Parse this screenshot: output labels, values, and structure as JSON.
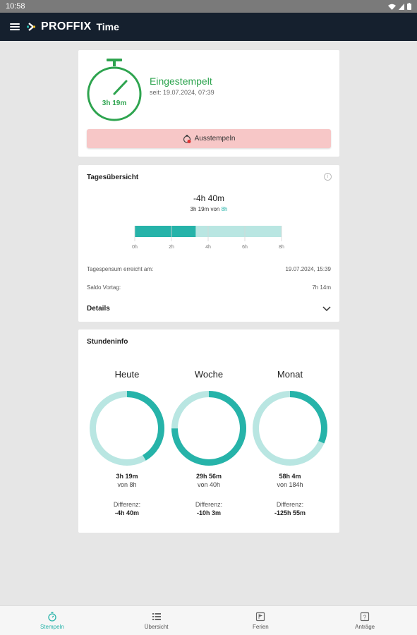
{
  "status": {
    "time": "10:58"
  },
  "app": {
    "brand": "PROFFIX",
    "product": "Time"
  },
  "stamp": {
    "elapsed": "3h 19m",
    "title": "Eingestempelt",
    "since": "seit: 19.07.2024, 07:39",
    "button_label": "Ausstempeln"
  },
  "overview": {
    "title": "Tagesübersicht",
    "difference": "-4h 40m",
    "worked": "3h 19m",
    "of_word": "von",
    "target": "8h",
    "progress_fraction": 0.415,
    "ticks": [
      "0h",
      "2h",
      "4h",
      "6h",
      "8h"
    ],
    "rows": [
      {
        "label": "Tagespensum erreicht am:",
        "value": "19.07.2024, 15:39"
      },
      {
        "label": "Saldo Vortag:",
        "value": "7h 14m"
      }
    ],
    "details_label": "Details"
  },
  "hours": {
    "title": "Stundeninfo",
    "diff_label": "Differenz:",
    "items": [
      {
        "title": "Heute",
        "value": "3h 19m",
        "of": "von 8h",
        "diff": "-4h 40m",
        "fraction": 0.415
      },
      {
        "title": "Woche",
        "value": "29h 56m",
        "of": "von 40h",
        "diff": "-10h 3m",
        "fraction": 0.748
      },
      {
        "title": "Monat",
        "value": "58h 4m",
        "of": "von 184h",
        "diff": "-125h 55m",
        "fraction": 0.316
      }
    ]
  },
  "nav": {
    "items": [
      {
        "label": "Stempeln",
        "icon": "stopwatch-icon"
      },
      {
        "label": "Übersicht",
        "icon": "list-icon"
      },
      {
        "label": "Ferien",
        "icon": "vacation-icon"
      },
      {
        "label": "Anträge",
        "icon": "request-icon"
      }
    ]
  },
  "colors": {
    "accent": "#26b3a9",
    "accent_light": "#b9e6e2",
    "green": "#2ea44f",
    "red_btn": "#f7c7c7",
    "appbar": "#15202e"
  }
}
